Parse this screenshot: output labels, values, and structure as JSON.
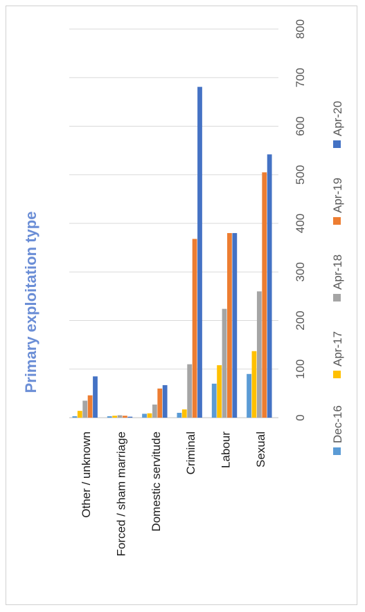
{
  "chart_data": {
    "type": "bar",
    "title": "Primary exploitation type",
    "orientation": "rotated 90 degrees (page in landscape)",
    "categories": [
      "Other / unknown",
      "Forced / sham marriage",
      "Domestic servitude",
      "Criminal",
      "Labour",
      "Sexual"
    ],
    "series": [
      {
        "name": "Dec-16",
        "values": [
          3,
          3,
          8,
          10,
          70,
          90
        ]
      },
      {
        "name": "Apr-17",
        "values": [
          14,
          4,
          9,
          17,
          108,
          137
        ]
      },
      {
        "name": "Apr-18",
        "values": [
          35,
          5,
          27,
          110,
          224,
          260
        ]
      },
      {
        "name": "Apr-19",
        "values": [
          46,
          4,
          60,
          368,
          380,
          505
        ]
      },
      {
        "name": "Apr-20",
        "values": [
          85,
          2,
          67,
          681,
          380,
          542
        ]
      }
    ],
    "colors": [
      "#5b9bd5",
      "#ffc000",
      "#a5a5a5",
      "#ed7d31",
      "#4472c4"
    ],
    "title_color": "#6b8ed6",
    "ylim": [
      0,
      800
    ],
    "ticks": [
      0,
      100,
      200,
      300,
      400,
      500,
      600,
      700,
      800
    ],
    "grid": true,
    "legend": "bottom"
  }
}
